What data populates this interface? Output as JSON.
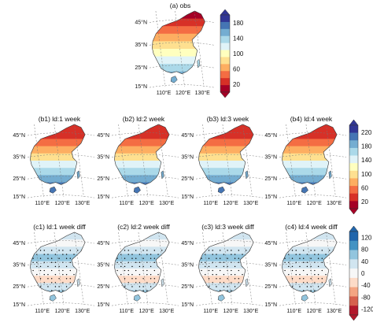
{
  "rows": [
    {
      "id": "obs",
      "panels": [
        {
          "title": "(a) obs",
          "scheme": "obs",
          "stipple": false
        }
      ],
      "colorbar": {
        "labels": [
          "180",
          "140",
          "100",
          "60",
          "20"
        ],
        "scheme": "main"
      }
    },
    {
      "id": "lead",
      "panels": [
        {
          "title": "(b1) ld:1 week",
          "scheme": "lead",
          "stipple": false
        },
        {
          "title": "(b2) ld:2 week",
          "scheme": "lead",
          "stipple": false
        },
        {
          "title": "(b3) ld:3 week",
          "scheme": "lead",
          "stipple": false
        },
        {
          "title": "(b4) ld:4 week",
          "scheme": "lead",
          "stipple": false
        }
      ],
      "colorbar": {
        "labels": [
          "220",
          "180",
          "140",
          "100",
          "60",
          "20"
        ],
        "scheme": "main"
      }
    },
    {
      "id": "diff",
      "panels": [
        {
          "title": "(c1) ld:1 week diff",
          "scheme": "diff",
          "stipple": true
        },
        {
          "title": "(c2) ld:2 week diff",
          "scheme": "diff",
          "stipple": true
        },
        {
          "title": "(c3) ld:3 week diff",
          "scheme": "diff",
          "stipple": true
        },
        {
          "title": "(c4) ld:4 week diff",
          "scheme": "diff",
          "stipple": true
        }
      ],
      "colorbar": {
        "labels": [
          "120",
          "80",
          "40",
          "0",
          "-40",
          "-80",
          "-120"
        ],
        "scheme": "diff"
      }
    }
  ],
  "lat_labels": [
    "45°N",
    "35°N",
    "25°N",
    "15°N"
  ],
  "lon_labels": [
    "110°E",
    "120°E",
    "130°E"
  ],
  "colors": {
    "main": [
      "#a50026",
      "#d73027",
      "#f46d43",
      "#fdae61",
      "#fee090",
      "#ffffbf",
      "#e0f3f8",
      "#abd9e9",
      "#74add1",
      "#4575b4",
      "#313695"
    ],
    "diff": [
      "#b2182b",
      "#d6604d",
      "#f4a582",
      "#fddbc7",
      "#f7f7f7",
      "#d1e5f0",
      "#92c5de",
      "#4393c3",
      "#2166ac"
    ]
  }
}
